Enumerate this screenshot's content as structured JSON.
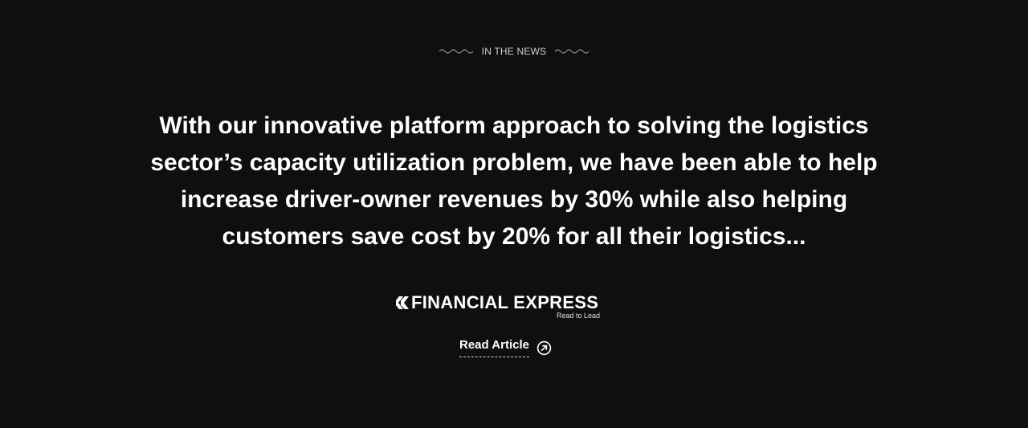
{
  "section": {
    "eyebrow": "IN THE NEWS"
  },
  "quote": {
    "text": "With our innovative platform approach to solving the logistics sector’s capacity utilization problem, we have been able to help increase driver-owner revenues by 30% while also helping customers save cost by 20% for all their logistics..."
  },
  "source": {
    "logo_name": "FINANCIAL EXPRESS",
    "logo_tagline": "Read to Lead"
  },
  "cta": {
    "label": "Read Article",
    "icon": "arrow-up-right-circle-icon"
  },
  "colors": {
    "background": "#0f0f0f",
    "text": "#ffffff",
    "muted": "#cfcfcf"
  }
}
